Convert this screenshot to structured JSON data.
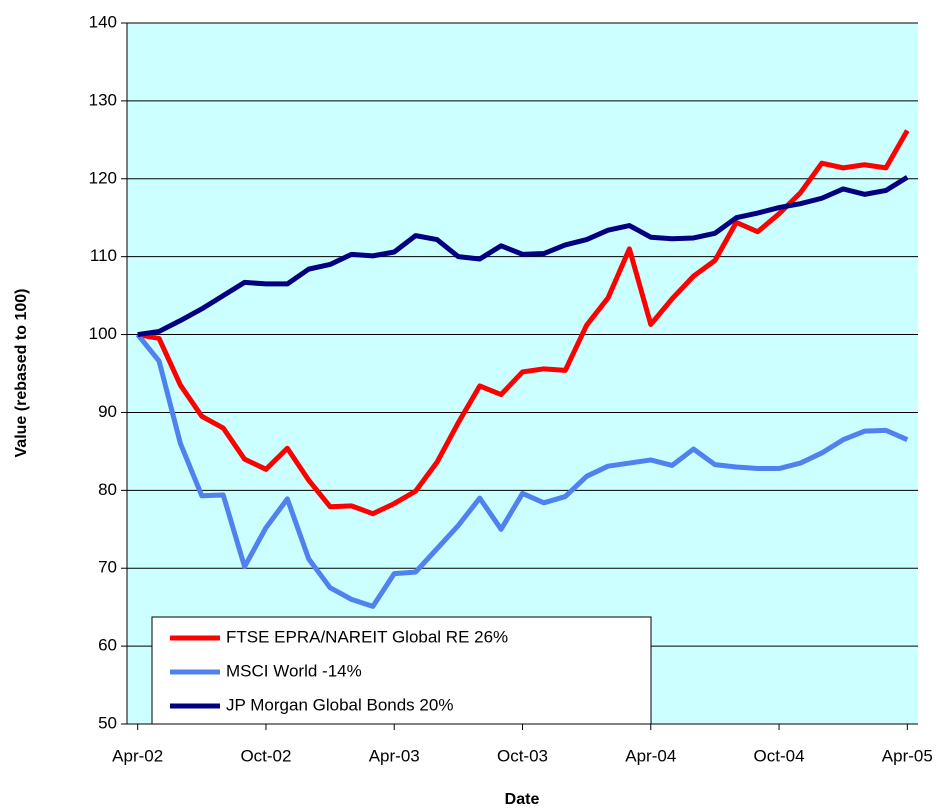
{
  "chart_data": {
    "type": "line",
    "x_label": "Date",
    "y_label": "Value (rebased to 100)",
    "categories": [
      "Apr-02",
      null,
      null,
      null,
      null,
      null,
      "Oct-02",
      null,
      null,
      null,
      null,
      null,
      "Apr-03",
      null,
      null,
      null,
      null,
      null,
      "Oct-03",
      null,
      null,
      null,
      null,
      null,
      "Apr-04",
      null,
      null,
      null,
      null,
      null,
      "Oct-04",
      null,
      null,
      null,
      null,
      null,
      "Apr-05"
    ],
    "series": [
      {
        "name": "FTSE EPRA/NAREIT Global RE 26%",
        "color": "#ff0000",
        "values": [
          100,
          99.5,
          93.5,
          89.5,
          88,
          84,
          82.7,
          85.4,
          81.3,
          77.9,
          78,
          77,
          78.3,
          79.9,
          83.6,
          88.7,
          93.4,
          92.3,
          95.2,
          95.6,
          95.4,
          101.2,
          104.7,
          111,
          101.3,
          104.6,
          107.5,
          109.5,
          114.4,
          113.2,
          115.5,
          118.2,
          122,
          121.4,
          121.8,
          121.4,
          126.2
        ]
      },
      {
        "name": "MSCI World -14%",
        "color": "#4f81ef",
        "values": [
          100,
          96.6,
          86,
          79.3,
          79.4,
          70.2,
          75.2,
          78.9,
          71.2,
          67.5,
          66,
          65.1,
          69.3,
          69.5,
          72.5,
          75.5,
          79,
          75,
          79.6,
          78.4,
          79.2,
          81.8,
          83.1,
          83.5,
          83.9,
          83.2,
          85.3,
          83.3,
          83,
          82.8,
          82.8,
          83.5,
          84.8,
          86.5,
          87.6,
          87.7,
          86.5
        ]
      },
      {
        "name": "JP Morgan Global Bonds 20%",
        "color": "#000080",
        "values": [
          100,
          100.4,
          101.8,
          103.3,
          105,
          106.7,
          106.5,
          106.5,
          108.4,
          109,
          110.3,
          110.1,
          110.6,
          112.7,
          112.2,
          110,
          109.7,
          111.4,
          110.3,
          110.4,
          111.5,
          112.2,
          113.4,
          114,
          112.5,
          112.3,
          112.4,
          113,
          115,
          115.6,
          116.3,
          116.8,
          117.5,
          118.7,
          118,
          118.5,
          120.2
        ]
      }
    ],
    "ylim": [
      50,
      140
    ],
    "yticks": [
      50,
      60,
      70,
      80,
      90,
      100,
      110,
      120,
      130,
      140
    ],
    "grid": true,
    "legend": "lower left",
    "background": "#ccffff"
  }
}
